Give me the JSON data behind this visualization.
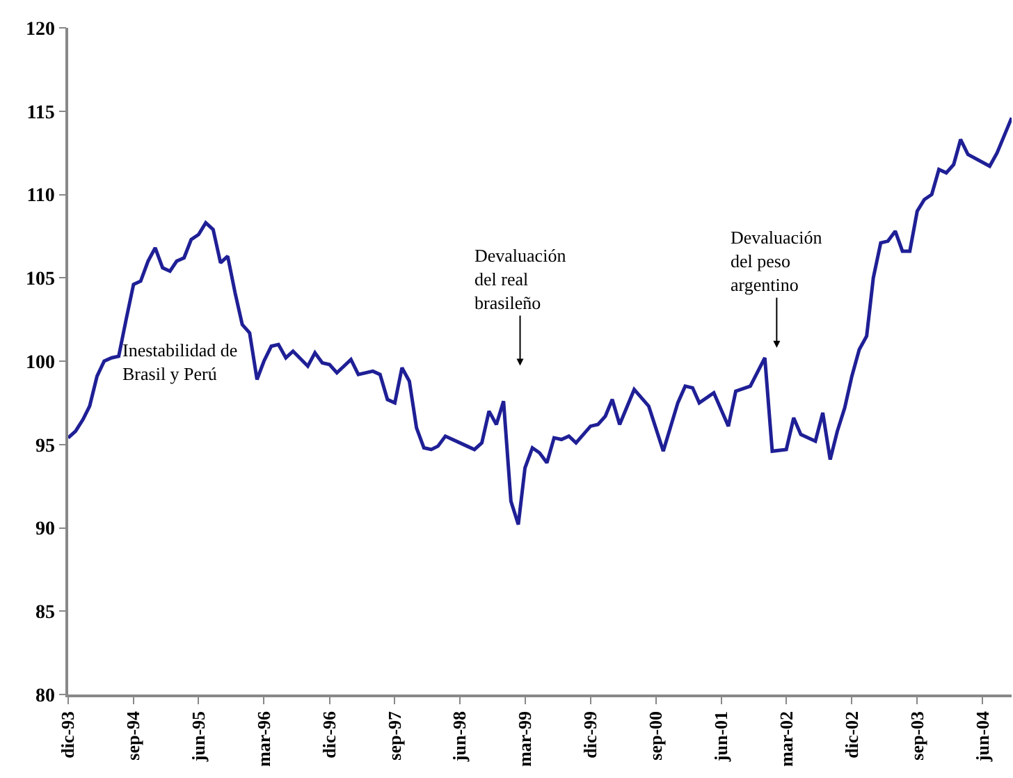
{
  "chart_data": {
    "type": "line",
    "grid": false,
    "marker": "none",
    "line_style": "solid",
    "x": [
      "1993-12",
      "1994-01",
      "1994-02",
      "1994-03",
      "1994-04",
      "1994-05",
      "1994-06",
      "1994-07",
      "1994-08",
      "1994-09",
      "1994-10",
      "1994-11",
      "1994-12",
      "1995-01",
      "1995-02",
      "1995-03",
      "1995-04",
      "1995-05",
      "1995-06",
      "1995-07",
      "1995-08",
      "1995-09",
      "1995-10",
      "1995-11",
      "1995-12",
      "1996-01",
      "1996-02",
      "1996-03",
      "1996-04",
      "1996-05",
      "1996-06",
      "1996-07",
      "1996-09",
      "1996-10",
      "1996-11",
      "1996-12",
      "1997-01",
      "1997-03",
      "1997-04",
      "1997-06",
      "1997-07",
      "1997-08",
      "1997-09",
      "1997-10",
      "1997-11",
      "1997-12",
      "1998-01",
      "1998-02",
      "1998-03",
      "1998-04",
      "1998-06",
      "1998-07",
      "1998-08",
      "1998-09",
      "1998-10",
      "1998-11",
      "1998-12",
      "1999-01",
      "1999-02",
      "1999-03",
      "1999-04",
      "1999-05",
      "1999-06",
      "1999-07",
      "1999-08",
      "1999-09",
      "1999-10",
      "1999-12",
      "2000-01",
      "2000-02",
      "2000-03",
      "2000-04",
      "2000-06",
      "2000-08",
      "2000-10",
      "2000-12",
      "2001-01",
      "2001-02",
      "2001-03",
      "2001-05",
      "2001-07",
      "2001-08",
      "2001-10",
      "2001-12",
      "2002-01",
      "2002-03",
      "2002-04",
      "2002-05",
      "2002-07",
      "2002-08",
      "2002-09",
      "2002-10",
      "2002-11",
      "2002-12",
      "2003-01",
      "2003-02",
      "2003-03",
      "2003-04",
      "2003-05",
      "2003-06",
      "2003-07",
      "2003-08",
      "2003-09",
      "2003-10",
      "2003-11",
      "2003-12",
      "2004-01",
      "2004-02",
      "2004-03",
      "2004-04",
      "2004-07",
      "2004-08",
      "2004-10"
    ],
    "series": [
      {
        "color": "#1f1f96",
        "values": [
          95.4,
          95.8,
          96.5,
          97.3,
          99.1,
          100.0,
          100.2,
          100.3,
          102.5,
          104.6,
          104.8,
          106.0,
          106.8,
          105.6,
          105.4,
          106.0,
          106.2,
          107.3,
          107.6,
          108.3,
          107.9,
          105.9,
          106.3,
          104.1,
          102.2,
          101.7,
          98.9,
          100.0,
          100.9,
          101.0,
          100.2,
          100.6,
          99.7,
          100.5,
          99.9,
          99.8,
          99.3,
          100.1,
          99.2,
          99.4,
          99.2,
          97.7,
          97.5,
          99.6,
          98.8,
          96.0,
          94.8,
          94.7,
          94.9,
          95.5,
          95.1,
          94.9,
          94.7,
          95.1,
          97.0,
          96.2,
          97.6,
          91.6,
          90.2,
          93.6,
          94.8,
          94.5,
          93.9,
          95.4,
          95.3,
          95.5,
          95.1,
          96.1,
          96.2,
          96.7,
          97.7,
          96.2,
          98.3,
          97.3,
          94.6,
          97.5,
          98.5,
          98.4,
          97.5,
          98.1,
          96.1,
          98.2,
          98.5,
          100.2,
          94.6,
          94.7,
          96.6,
          95.6,
          95.2,
          96.9,
          94.1,
          95.8,
          97.2,
          99.1,
          100.7,
          101.5,
          105.0,
          107.1,
          107.2,
          107.8,
          106.6,
          106.6,
          109.0,
          109.7,
          110.0,
          111.5,
          111.3,
          111.8,
          113.3,
          112.4,
          111.7,
          112.5,
          114.6
        ]
      }
    ],
    "xlim": [
      "1993-12",
      "2004-10"
    ],
    "xticks": [
      {
        "value": "1993-12",
        "label": "dic-93"
      },
      {
        "value": "1994-09",
        "label": "sep-94"
      },
      {
        "value": "1995-06",
        "label": "jun-95"
      },
      {
        "value": "1996-03",
        "label": "mar-96"
      },
      {
        "value": "1996-12",
        "label": "dic-96"
      },
      {
        "value": "1997-09",
        "label": "sep-97"
      },
      {
        "value": "1998-06",
        "label": "jun-98"
      },
      {
        "value": "1999-03",
        "label": "mar-99"
      },
      {
        "value": "1999-12",
        "label": "dic-99"
      },
      {
        "value": "2000-09",
        "label": "sep-00"
      },
      {
        "value": "2001-06",
        "label": "jun-01"
      },
      {
        "value": "2002-03",
        "label": "mar-02"
      },
      {
        "value": "2002-12",
        "label": "dic-02"
      },
      {
        "value": "2003-09",
        "label": "sep-03"
      },
      {
        "value": "2004-06",
        "label": "jun-04"
      }
    ],
    "ylim": [
      80,
      120
    ],
    "yticks": [
      80,
      85,
      90,
      95,
      100,
      105,
      110,
      115,
      120
    ],
    "annotations": [
      "Inestabilidad de\nBrasil y Perú",
      "Devaluación\ndel real\nbrasileño",
      "Devaluación\ndel peso\nargentino"
    ]
  }
}
